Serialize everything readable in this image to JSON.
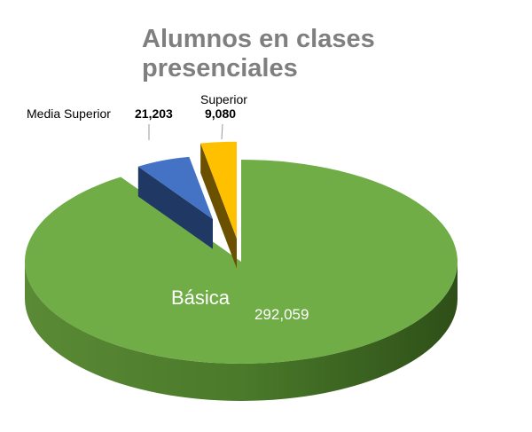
{
  "chart_data": {
    "type": "pie",
    "style": "3d-exploded",
    "title": "Alumnos en clases presenciales",
    "slices": [
      {
        "label": "Básica",
        "value": 292059,
        "value_label": "292,059",
        "color": "#70ad47",
        "side_color": "#3f6b22"
      },
      {
        "label": "Media Superior",
        "value": 21203,
        "value_label": "21,203",
        "color": "#4472c4",
        "side_color": "#1f3864"
      },
      {
        "label": "Superior",
        "value": 9080,
        "value_label": "9,080",
        "color": "#ffc000",
        "side_color": "#6b5000"
      }
    ]
  }
}
